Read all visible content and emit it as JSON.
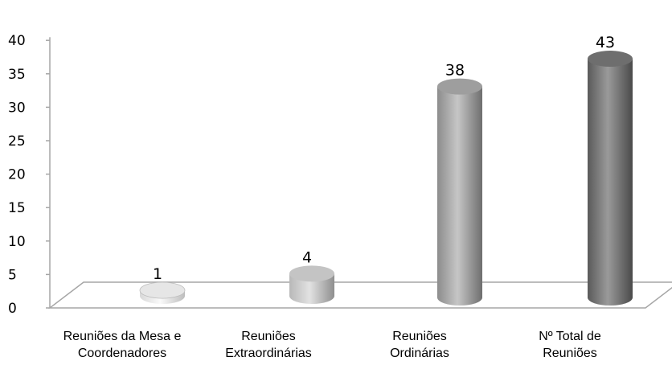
{
  "chart_data": {
    "type": "bar",
    "style": "3d-cylinder",
    "categories": [
      [
        "Reuniões da Mesa e",
        "Coordenadores"
      ],
      [
        "Reuniões",
        "Extraordinárias"
      ],
      [
        "Reuniões",
        "Ordinárias"
      ],
      [
        "Nº Total de",
        "Reuniões"
      ]
    ],
    "values": [
      1,
      4,
      38,
      43
    ],
    "data_labels": [
      "1",
      "4",
      "38",
      "43"
    ],
    "y_ticks": [
      "0",
      "5",
      "10",
      "15",
      "20",
      "25",
      "30",
      "35",
      "40"
    ],
    "ylim": [
      0,
      40
    ],
    "grid": false,
    "legend": "none",
    "colors": {
      "bar_light": "#e8e8e8",
      "bar_mid": "#a8a8a8",
      "bar_dark": "#6a6a6a",
      "axis": "#a6a6a6"
    }
  }
}
